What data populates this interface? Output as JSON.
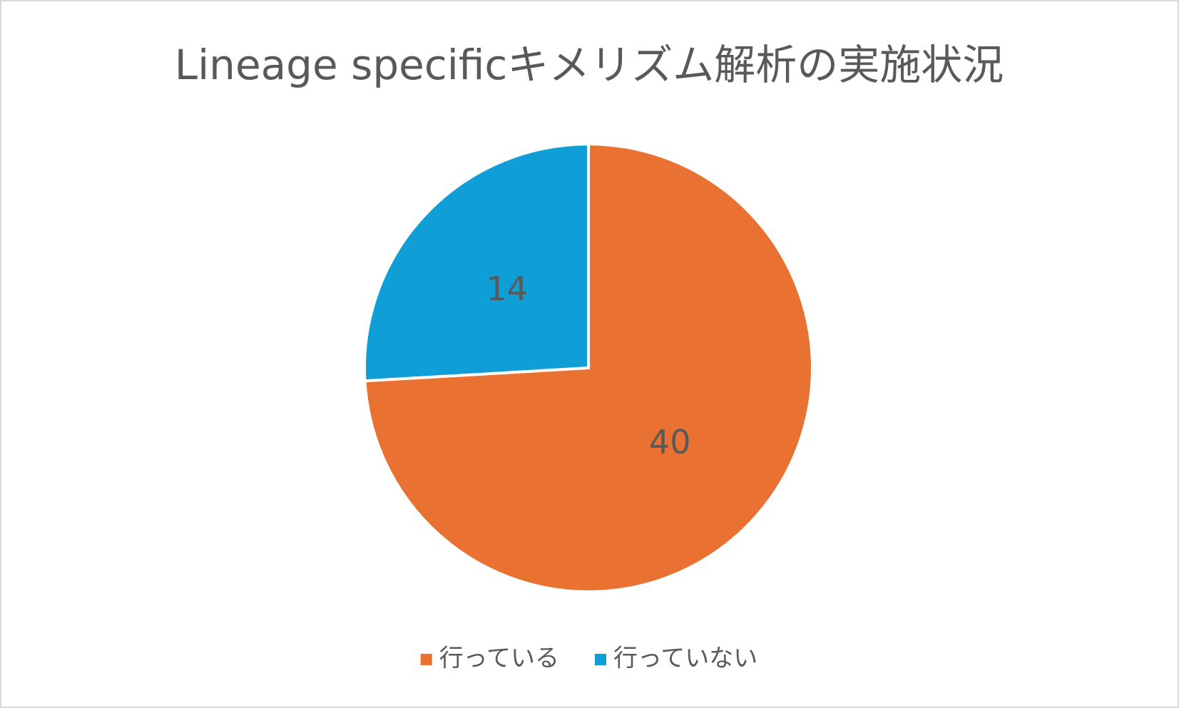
{
  "chart_data": {
    "type": "pie",
    "title": "Lineage specificキメリズム解析の実施状況",
    "categories": [
      "行っている",
      "行っていない"
    ],
    "values": [
      40,
      14
    ],
    "colors": [
      "#e97132",
      "#0f9ed5"
    ],
    "legend": "bottom"
  }
}
